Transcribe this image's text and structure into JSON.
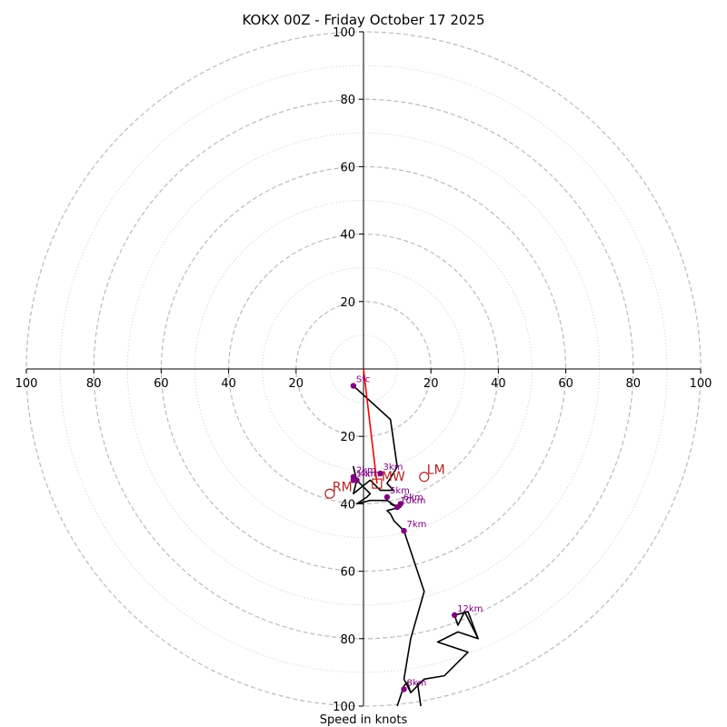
{
  "chart_data": {
    "type": "hodograph",
    "title": "KOKX 00Z - Friday October 17 2025",
    "xlabel": "Speed in knots",
    "range": 100,
    "major_rings": [
      20,
      40,
      60,
      80,
      100
    ],
    "minor_rings": [
      10,
      30,
      50,
      70,
      90
    ],
    "tick_labels": {
      "top": [
        "20",
        "40",
        "60",
        "80",
        "100"
      ],
      "left": [
        "100",
        "80",
        "60",
        "40",
        "20"
      ],
      "right": [
        "20",
        "40",
        "60",
        "80",
        "100"
      ],
      "bottom": [
        "20",
        "40",
        "60",
        "80",
        "100"
      ]
    },
    "trace": [
      [
        -3,
        -5
      ],
      [
        8,
        -15
      ],
      [
        10,
        -29
      ],
      [
        7,
        -34
      ],
      [
        9,
        -36
      ],
      [
        5,
        -36
      ],
      [
        2,
        -33
      ],
      [
        -3,
        -37
      ],
      [
        -2,
        -33
      ],
      [
        -3,
        -29
      ],
      [
        -2,
        -33
      ],
      [
        2,
        -37
      ],
      [
        1,
        -38
      ],
      [
        -2,
        -40
      ],
      [
        2,
        -39
      ],
      [
        7,
        -39
      ],
      [
        10,
        -41
      ],
      [
        8,
        -40
      ],
      [
        11,
        -41
      ],
      [
        7,
        -42
      ],
      [
        8,
        -43
      ],
      [
        9,
        -45
      ],
      [
        12,
        -48
      ],
      [
        18,
        -66
      ],
      [
        14,
        -80
      ],
      [
        12,
        -92
      ],
      [
        14,
        -96
      ],
      [
        18,
        -92
      ],
      [
        24,
        -91
      ],
      [
        31,
        -84
      ],
      [
        22,
        -81
      ],
      [
        28,
        -78
      ],
      [
        34,
        -80
      ],
      [
        30,
        -72
      ],
      [
        28,
        -76
      ],
      [
        27,
        -73
      ],
      [
        31,
        -72
      ],
      [
        34,
        -80
      ],
      [
        28,
        -78
      ],
      [
        22,
        -81
      ],
      [
        31,
        -84
      ],
      [
        24,
        -91
      ],
      [
        18,
        -92
      ],
      [
        14,
        -96
      ],
      [
        13,
        -93
      ],
      [
        12,
        -94
      ],
      [
        10,
        -100
      ]
    ],
    "trace_tail": [
      [
        17,
        -100
      ],
      [
        16,
        -93
      ]
    ],
    "heights": [
      {
        "label": "Sfc",
        "u": -3,
        "v": -5
      },
      {
        "label": "1km",
        "u": -3,
        "v": -33
      },
      {
        "label": "2km",
        "u": -3,
        "v": -32
      },
      {
        "label": "3km",
        "u": 5,
        "v": -31
      },
      {
        "label": "4km",
        "u": -2,
        "v": -33
      },
      {
        "label": "5km",
        "u": 7,
        "v": -38
      },
      {
        "label": "6km",
        "u": 11,
        "v": -40
      },
      {
        "label": "10km",
        "u": 10,
        "v": -41
      },
      {
        "label": "7km",
        "u": 12,
        "v": -48
      },
      {
        "label": "12km",
        "u": 27,
        "v": -73
      },
      {
        "label": "8km",
        "u": 12,
        "v": -95
      }
    ],
    "mean_wind": {
      "label": "MW",
      "u": 4,
      "v": -34
    },
    "right_mover": {
      "label": "RM",
      "u": -10,
      "v": -37
    },
    "left_mover": {
      "label": "LM",
      "u": 18,
      "v": -32
    },
    "shear_vector": [
      [
        0,
        0
      ],
      [
        4,
        -34
      ]
    ],
    "colors": {
      "trace": "#000000",
      "shear": "#ff0000",
      "height": "#800080",
      "marker": "#b22222",
      "major_ring": "#bbbbbb",
      "minor_ring": "#cccccc"
    }
  }
}
